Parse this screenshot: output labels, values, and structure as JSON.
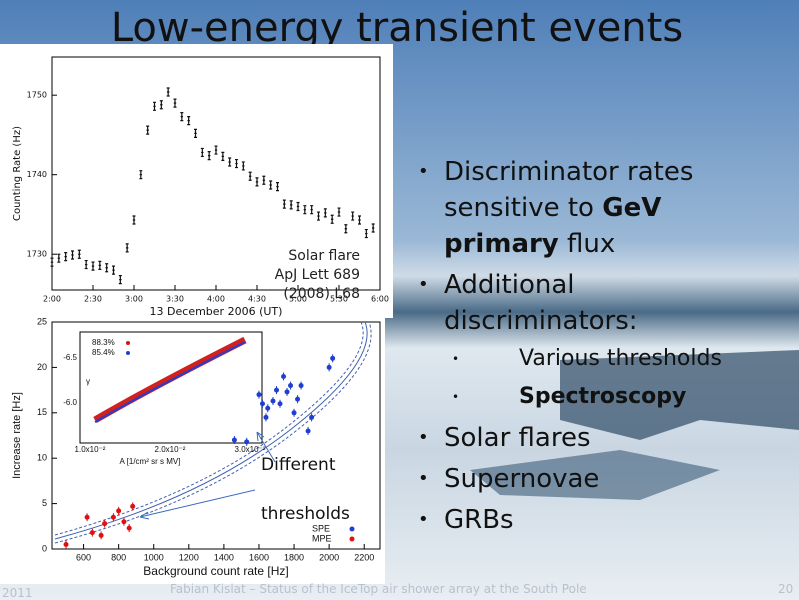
{
  "slide": {
    "title": "Low-energy transient events",
    "bullets": [
      {
        "parts": [
          {
            "text": "Discriminator rates sensitive to ",
            "bold": false
          },
          {
            "text": "GeV primary",
            "bold": true
          },
          {
            "text": " flux",
            "bold": false
          }
        ]
      },
      {
        "parts": [
          {
            "text": "Additional discriminators:",
            "bold": false
          }
        ],
        "sub": [
          {
            "parts": [
              {
                "text": "Various thresholds",
                "bold": false
              }
            ]
          },
          {
            "parts": [
              {
                "text": "Spectroscopy",
                "bold": true
              }
            ]
          }
        ]
      },
      {
        "parts": [
          {
            "text": "Solar flares",
            "bold": false
          }
        ]
      },
      {
        "parts": [
          {
            "text": "Supernovae",
            "bold": false
          }
        ]
      },
      {
        "parts": [
          {
            "text": "GRBs",
            "bold": false
          }
        ]
      }
    ],
    "footer": {
      "text": "Fabian Kislat – Status of the IceTop air shower array at the South Pole",
      "date": "2011",
      "page": "20"
    }
  },
  "chart_data": [
    {
      "type": "scatter",
      "x_label": "13 December 2006 (UT)",
      "y_label": "Counting Rate (Hz)",
      "color": "#111111",
      "annotation": [
        "Solar flare",
        "ApJ Lett 689",
        "(2008) L68"
      ],
      "x": [
        0,
        5,
        10,
        15,
        20,
        25,
        30,
        35,
        40,
        45,
        50,
        55,
        60,
        65,
        70,
        75,
        80,
        85,
        90,
        95,
        100,
        105,
        110,
        115,
        120,
        125,
        130,
        135,
        140,
        145,
        150,
        155,
        160,
        165,
        170,
        175,
        180,
        185,
        190,
        195,
        200,
        205,
        210,
        215,
        220,
        225,
        230,
        235
      ],
      "values": [
        1729.0,
        1729.5,
        1729.7,
        1729.9,
        1730.0,
        1728.7,
        1728.5,
        1728.6,
        1728.3,
        1728.0,
        1726.8,
        1730.8,
        1734.3,
        1740.0,
        1745.6,
        1748.6,
        1748.8,
        1750.4,
        1749.0,
        1747.3,
        1746.8,
        1745.2,
        1742.8,
        1742.4,
        1743.1,
        1742.3,
        1741.6,
        1741.4,
        1741.1,
        1739.8,
        1739.1,
        1739.3,
        1738.7,
        1738.5,
        1736.3,
        1736.2,
        1736.0,
        1735.6,
        1735.6,
        1734.8,
        1735.2,
        1734.4,
        1735.3,
        1733.2,
        1734.8,
        1734.3,
        1732.6,
        1733.3
      ],
      "xlim": [
        0,
        240
      ],
      "xticks": [
        {
          "value": 0,
          "label": "2:00"
        },
        {
          "value": 30,
          "label": "2:30"
        },
        {
          "value": 60,
          "label": "3:00"
        },
        {
          "value": 90,
          "label": "3:30"
        },
        {
          "value": 120,
          "label": "4:00"
        },
        {
          "value": 150,
          "label": "4:30"
        },
        {
          "value": 180,
          "label": "5:00"
        },
        {
          "value": 210,
          "label": "5:30"
        },
        {
          "value": 240,
          "label": "6:00"
        }
      ],
      "ylim": [
        1725.5,
        1754.8
      ],
      "yticks": [
        1730,
        1740,
        1750
      ]
    },
    {
      "type": "scatter",
      "x_label": "Background count rate [Hz]",
      "y_label": "Increase rate [Hz]",
      "annotation": [
        "Different",
        "thresholds"
      ],
      "series": [
        {
          "name": "SPE",
          "color": "#1f3fd0",
          "x": [
            1460,
            1530,
            1600,
            1620,
            1640,
            1650,
            1680,
            1700,
            1720,
            1740,
            1760,
            1780,
            1800,
            1820,
            1840,
            1880,
            1900,
            2000,
            2020
          ],
          "values": [
            12,
            11.8,
            17,
            16,
            14.5,
            15.5,
            16.3,
            17.5,
            16,
            19,
            17.3,
            18,
            15,
            16.5,
            18,
            13,
            14.5,
            20,
            21
          ]
        },
        {
          "name": "MPE",
          "color": "#e01010",
          "x": [
            500,
            620,
            650,
            700,
            720,
            770,
            800,
            830,
            860,
            880
          ],
          "values": [
            0.5,
            3.5,
            1.8,
            1.5,
            2.8,
            3.5,
            4.2,
            3.0,
            2.3,
            4.7
          ]
        }
      ],
      "xlim": [
        420,
        2290
      ],
      "xticks": [
        600,
        800,
        1000,
        1200,
        1400,
        1600,
        1800,
        2000,
        2200
      ],
      "ylim": [
        0,
        25
      ],
      "yticks": [
        0,
        5,
        10,
        15,
        20,
        25
      ],
      "inset": {
        "legend": [
          "88.3%",
          "85.4%"
        ],
        "yticks": [
          "-6.5",
          "-6.0"
        ],
        "y_label": "γ",
        "xticks": [
          "1.0x10⁻²",
          "2.0x10⁻²",
          "3.0x10⁻²"
        ],
        "x_label": "A [1/cm² sr s MV]"
      }
    }
  ]
}
